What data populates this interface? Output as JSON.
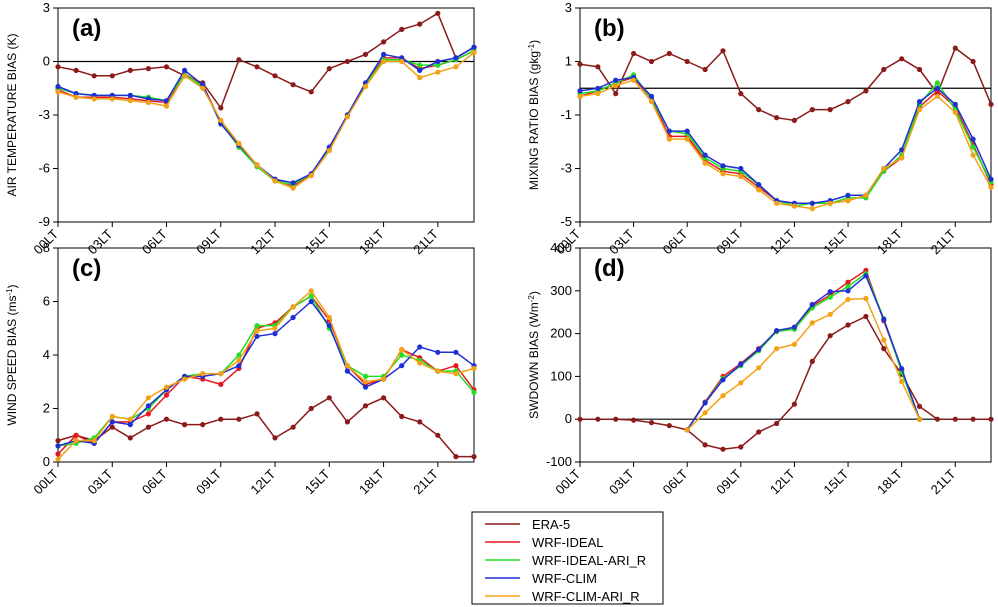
{
  "chart_data": [
    {
      "id": "a",
      "type": "line",
      "panel_label": "(a)",
      "ylabel": "AIR TEMPERATURE BIAS (K)",
      "ylim": [
        -9,
        3
      ],
      "yticks": [
        -9,
        -6,
        -3,
        0,
        3
      ],
      "ytick_labels": [
        "-9",
        "-6",
        "-3",
        "0",
        "3"
      ],
      "reference_line": 0,
      "series": [
        {
          "name": "ERA-5",
          "key": "era5",
          "color": "#8b1a1a",
          "values": [
            -0.3,
            -0.5,
            -0.8,
            -0.8,
            -0.5,
            -0.4,
            -0.3,
            -0.8,
            -1.2,
            -2.6,
            0.1,
            -0.3,
            -0.8,
            -1.3,
            -1.7,
            -0.4,
            0.0,
            0.4,
            1.1,
            1.8,
            2.1,
            2.7,
            0.2,
            0.8
          ]
        },
        {
          "name": "WRF-IDEAL",
          "key": "ideal",
          "color": "#e8191e",
          "values": [
            -1.6,
            -2.0,
            -2.0,
            -2.0,
            -2.1,
            -2.2,
            -2.3,
            -0.7,
            -1.3,
            -3.4,
            -4.7,
            -5.8,
            -6.6,
            -7.0,
            -6.3,
            -4.9,
            -3.0,
            -1.3,
            0.2,
            0.2,
            -0.4,
            -0.2,
            0.1,
            0.6
          ]
        },
        {
          "name": "WRF-IDEAL-ARI_R",
          "key": "ideal_ari",
          "color": "#22dd22",
          "values": [
            -1.5,
            -1.8,
            -1.9,
            -1.9,
            -1.9,
            -2.0,
            -2.2,
            -0.7,
            -1.4,
            -3.4,
            -4.8,
            -5.9,
            -6.7,
            -6.9,
            -6.3,
            -4.9,
            -3.0,
            -1.3,
            0.1,
            0.1,
            -0.2,
            -0.2,
            0.1,
            0.6
          ]
        },
        {
          "name": "WRF-CLIM",
          "key": "clim",
          "color": "#1f2fd6",
          "values": [
            -1.4,
            -1.8,
            -1.9,
            -1.9,
            -1.9,
            -2.1,
            -2.2,
            -0.5,
            -1.3,
            -3.5,
            -4.7,
            -5.8,
            -6.6,
            -6.8,
            -6.3,
            -4.8,
            -3.0,
            -1.2,
            0.4,
            0.2,
            -0.5,
            0.0,
            0.2,
            0.8
          ]
        },
        {
          "name": "WRF-CLIM-ARI_R",
          "key": "clim_ari",
          "color": "#f3a215",
          "values": [
            -1.7,
            -2.0,
            -2.1,
            -2.1,
            -2.2,
            -2.3,
            -2.5,
            -0.8,
            -1.5,
            -3.3,
            -4.6,
            -5.8,
            -6.7,
            -7.1,
            -6.4,
            -5.0,
            -3.1,
            -1.4,
            0.0,
            0.0,
            -0.9,
            -0.6,
            -0.3,
            0.5
          ]
        }
      ]
    },
    {
      "id": "b",
      "type": "line",
      "panel_label": "(b)",
      "ylabel": "MIXING RATIO BIAS (gkg",
      "ylabel_sup": "-1",
      "ylabel_end": ")",
      "ylim": [
        -5,
        3
      ],
      "yticks": [
        -5,
        -3,
        -1,
        1,
        3
      ],
      "ytick_labels": [
        "-5",
        "-3",
        "-1",
        "1",
        "3"
      ],
      "reference_line": 0,
      "series": [
        {
          "name": "ERA-5",
          "key": "era5",
          "color": "#8b1a1a",
          "values": [
            0.9,
            0.8,
            -0.2,
            1.3,
            1.0,
            1.3,
            1.0,
            0.7,
            1.4,
            -0.2,
            -0.8,
            -1.1,
            -1.2,
            -0.8,
            -0.8,
            -0.5,
            -0.1,
            0.7,
            1.1,
            0.7,
            -0.2,
            1.5,
            1.0,
            -0.6
          ]
        },
        {
          "name": "WRF-IDEAL",
          "key": "ideal",
          "color": "#e8191e",
          "values": [
            -0.3,
            -0.1,
            0.2,
            0.4,
            -0.4,
            -1.8,
            -1.8,
            -2.7,
            -3.1,
            -3.2,
            -3.7,
            -4.2,
            -4.3,
            -4.3,
            -4.3,
            -4.2,
            -4.0,
            -3.1,
            -2.6,
            -0.7,
            -0.1,
            -0.7,
            -2.1,
            -3.6
          ]
        },
        {
          "name": "WRF-IDEAL-ARI_R",
          "key": "ideal_ari",
          "color": "#22dd22",
          "values": [
            -0.2,
            -0.1,
            0.2,
            0.5,
            -0.4,
            -1.6,
            -1.7,
            -2.6,
            -3.0,
            -3.1,
            -3.6,
            -4.2,
            -4.4,
            -4.3,
            -4.3,
            -4.1,
            -4.1,
            -3.1,
            -2.5,
            -0.6,
            0.2,
            -0.8,
            -2.2,
            -3.5
          ]
        },
        {
          "name": "WRF-CLIM",
          "key": "clim",
          "color": "#1f2fd6",
          "values": [
            -0.1,
            0.0,
            0.3,
            0.4,
            -0.3,
            -1.6,
            -1.6,
            -2.5,
            -2.9,
            -3.0,
            -3.6,
            -4.2,
            -4.3,
            -4.3,
            -4.2,
            -4.0,
            -4.0,
            -3.0,
            -2.3,
            -0.5,
            0.0,
            -0.6,
            -1.9,
            -3.4
          ]
        },
        {
          "name": "WRF-CLIM-ARI_R",
          "key": "clim_ari",
          "color": "#f3a215",
          "values": [
            -0.3,
            -0.2,
            0.1,
            0.3,
            -0.5,
            -1.9,
            -1.9,
            -2.8,
            -3.2,
            -3.3,
            -3.8,
            -4.3,
            -4.4,
            -4.5,
            -4.3,
            -4.2,
            -4.0,
            -3.0,
            -2.6,
            -0.8,
            -0.3,
            -0.9,
            -2.5,
            -3.7
          ]
        }
      ]
    },
    {
      "id": "c",
      "type": "line",
      "panel_label": "(c)",
      "ylabel": "WIND SPEED BIAS (ms",
      "ylabel_sup": "-1",
      "ylabel_end": ")",
      "ylim": [
        0,
        8
      ],
      "yticks": [
        0,
        2,
        4,
        6,
        8
      ],
      "ytick_labels": [
        "0",
        "2",
        "4",
        "6",
        "8"
      ],
      "series": [
        {
          "name": "ERA-5",
          "key": "era5",
          "color": "#8b1a1a",
          "values": [
            0.8,
            1.0,
            0.8,
            1.3,
            0.9,
            1.3,
            1.6,
            1.4,
            1.4,
            1.6,
            1.6,
            1.8,
            0.9,
            1.3,
            2.0,
            2.4,
            1.5,
            2.1,
            2.4,
            1.7,
            1.5,
            1.0,
            0.2,
            0.2
          ]
        },
        {
          "name": "WRF-IDEAL",
          "key": "ideal",
          "color": "#e8191e",
          "values": [
            0.3,
            1.0,
            0.7,
            1.5,
            1.5,
            1.8,
            2.5,
            3.2,
            3.1,
            2.9,
            3.5,
            5.0,
            5.2,
            5.8,
            6.2,
            5.3,
            3.6,
            2.9,
            3.1,
            4.2,
            3.9,
            3.4,
            3.6,
            2.7
          ]
        },
        {
          "name": "WRF-IDEAL-ARI_R",
          "key": "ideal_ari",
          "color": "#22dd22",
          "values": [
            0.6,
            0.7,
            0.9,
            1.7,
            1.6,
            2.0,
            2.7,
            3.2,
            3.3,
            3.3,
            4.0,
            5.1,
            5.1,
            5.8,
            6.2,
            5.0,
            3.6,
            3.2,
            3.2,
            4.0,
            3.8,
            3.4,
            3.4,
            2.6
          ]
        },
        {
          "name": "WRF-CLIM",
          "key": "clim",
          "color": "#1f2fd6",
          "values": [
            0.6,
            0.8,
            0.7,
            1.5,
            1.4,
            2.1,
            2.7,
            3.2,
            3.2,
            3.3,
            3.6,
            4.7,
            4.8,
            5.4,
            6.0,
            5.1,
            3.4,
            2.8,
            3.1,
            3.6,
            4.3,
            4.1,
            4.1,
            3.6
          ]
        },
        {
          "name": "WRF-CLIM-ARI_R",
          "key": "clim_ari",
          "color": "#f3a215",
          "values": [
            0.1,
            0.8,
            0.8,
            1.7,
            1.6,
            2.4,
            2.8,
            3.1,
            3.3,
            3.3,
            3.8,
            4.9,
            5.0,
            5.8,
            6.4,
            5.4,
            3.6,
            3.0,
            3.1,
            4.2,
            3.7,
            3.4,
            3.3,
            3.5
          ]
        }
      ]
    },
    {
      "id": "d",
      "type": "line",
      "panel_label": "(d)",
      "ylabel": "SWDOWN BIAS (Wm",
      "ylabel_sup": "-2",
      "ylabel_end": ")",
      "ylim": [
        -100,
        400
      ],
      "yticks": [
        -100,
        0,
        100,
        200,
        300,
        400
      ],
      "ytick_labels": [
        "-100",
        "0",
        "100",
        "200",
        "300",
        "400"
      ],
      "reference_line": 0,
      "series": [
        {
          "name": "ERA-5",
          "key": "era5",
          "color": "#8b1a1a",
          "values": [
            0,
            0,
            0,
            -2,
            -8,
            -15,
            -25,
            -60,
            -70,
            -65,
            -30,
            -10,
            35,
            135,
            195,
            220,
            240,
            165,
            105,
            30,
            0,
            0,
            0,
            0
          ]
        },
        {
          "name": "WRF-IDEAL",
          "key": "ideal",
          "color": "#e8191e",
          "values": [
            null,
            null,
            null,
            null,
            null,
            null,
            -25,
            40,
            100,
            130,
            165,
            205,
            215,
            265,
            290,
            320,
            348,
            230,
            115,
            0,
            null,
            null,
            null,
            null
          ]
        },
        {
          "name": "WRF-IDEAL-ARI_R",
          "key": "ideal_ari",
          "color": "#22dd22",
          "values": [
            null,
            null,
            null,
            null,
            null,
            null,
            -25,
            38,
            95,
            125,
            160,
            205,
            210,
            260,
            285,
            310,
            340,
            235,
            110,
            0,
            null,
            null,
            null,
            null
          ]
        },
        {
          "name": "WRF-CLIM",
          "key": "clim",
          "color": "#1f2fd6",
          "values": [
            null,
            null,
            null,
            null,
            null,
            null,
            -25,
            38,
            92,
            128,
            163,
            207,
            215,
            268,
            298,
            300,
            335,
            233,
            118,
            0,
            null,
            null,
            null,
            null
          ]
        },
        {
          "name": "WRF-CLIM-ARI_R",
          "key": "clim_ari",
          "color": "#f3a215",
          "values": [
            null,
            null,
            null,
            null,
            null,
            null,
            -25,
            15,
            55,
            85,
            120,
            165,
            175,
            225,
            245,
            280,
            282,
            185,
            88,
            0,
            null,
            null,
            null,
            null
          ]
        }
      ]
    }
  ],
  "x_ticks": [
    "00LT",
    "03LT",
    "06LT",
    "09LT",
    "12LT",
    "15LT",
    "18LT",
    "21LT"
  ],
  "x_tick_hours": [
    0,
    3,
    6,
    9,
    12,
    15,
    18,
    21
  ],
  "x_range_hours": [
    0,
    23
  ],
  "legend": {
    "entries": [
      {
        "label": "ERA-5",
        "color": "#8b1a1a"
      },
      {
        "label": "WRF-IDEAL",
        "color": "#e8191e"
      },
      {
        "label": "WRF-IDEAL-ARI_R",
        "color": "#22dd22"
      },
      {
        "label": "WRF-CLIM",
        "color": "#1f2fd6"
      },
      {
        "label": "WRF-CLIM-ARI_R",
        "color": "#f3a215"
      }
    ]
  }
}
